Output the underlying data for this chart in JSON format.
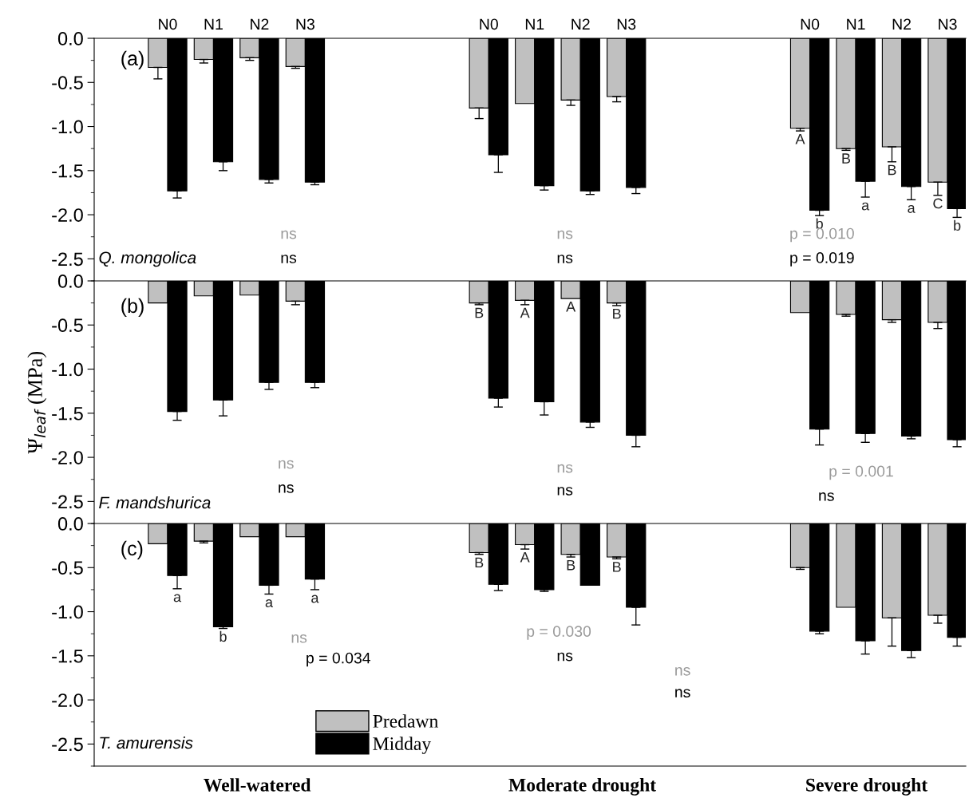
{
  "chart_data": [
    {
      "type": "bar",
      "categories": [
        "N0",
        "N1",
        "N2",
        "N3",
        null,
        null,
        null,
        "N0",
        "N1",
        "N2",
        "N3",
        null,
        null,
        null,
        "N0",
        "N1",
        "N2",
        "N3"
      ],
      "ylim": [
        -2.75,
        0
      ],
      "yticks": [
        {
          "value": 0,
          "label": "0.0"
        },
        {
          "value": -0.5,
          "label": "-0.5"
        },
        {
          "value": -1.0,
          "label": "-1.0"
        },
        {
          "value": -1.5,
          "label": "-1.5"
        },
        {
          "value": -2.0,
          "label": "-2.0"
        },
        {
          "value": -2.5,
          "label": "-2.5"
        }
      ],
      "series": [
        {
          "color": "#c0c0c0",
          "values": [
            -0.33,
            -0.24,
            -0.22,
            -0.32,
            null,
            null,
            null,
            -0.79,
            -0.74,
            -0.7,
            -0.66,
            null,
            null,
            null,
            -1.02,
            -1.25,
            -1.23,
            -1.63
          ],
          "errors": [
            [
              -0.46,
              -0.33
            ],
            [
              -0.28,
              -0.24
            ],
            [
              -0.25,
              -0.22
            ],
            [
              -0.34,
              -0.32
            ],
            null,
            null,
            null,
            [
              -0.91,
              -0.79
            ],
            null,
            [
              -0.76,
              -0.7
            ],
            [
              -0.72,
              -0.66
            ],
            null,
            null,
            null,
            [
              -1.05,
              -1.02
            ],
            [
              -1.27,
              -1.25
            ],
            [
              -1.4,
              -1.23
            ],
            [
              -1.78,
              -1.63
            ]
          ],
          "value_labels": [
            null,
            null,
            null,
            null,
            null,
            null,
            null,
            null,
            null,
            null,
            null,
            null,
            null,
            null,
            "A",
            "B",
            "B",
            "C"
          ]
        },
        {
          "color": "#000000",
          "values": [
            -1.73,
            -1.4,
            -1.6,
            -1.63,
            null,
            null,
            null,
            -1.32,
            -1.67,
            -1.73,
            -1.69,
            null,
            null,
            null,
            -1.95,
            -1.62,
            -1.68,
            -1.93
          ],
          "errors": [
            [
              -1.81,
              -1.73
            ],
            [
              -1.5,
              -1.4
            ],
            [
              -1.64,
              -1.6
            ],
            [
              -1.66,
              -1.63
            ],
            null,
            null,
            null,
            [
              -1.52,
              -1.32
            ],
            [
              -1.72,
              -1.67
            ],
            [
              -1.77,
              -1.73
            ],
            [
              -1.76,
              -1.69
            ],
            null,
            null,
            null,
            [
              -2.01,
              -1.95
            ],
            [
              -1.8,
              -1.62
            ],
            [
              -1.83,
              -1.68
            ],
            [
              -2.03,
              -1.93
            ]
          ],
          "value_labels": [
            null,
            null,
            null,
            null,
            null,
            null,
            null,
            null,
            null,
            null,
            null,
            null,
            null,
            null,
            "b",
            "a",
            "a",
            "b"
          ]
        }
      ],
      "annotations": [
        "(a)",
        "Q. mongolica",
        "ns",
        "ns",
        "ns",
        "ns",
        "p = 0.010",
        "p = 0.019"
      ]
    },
    {
      "type": "bar",
      "categories": [
        null,
        null,
        null,
        null,
        null,
        null,
        null,
        null,
        null,
        null,
        null,
        null,
        null,
        null,
        null,
        null,
        null,
        null
      ],
      "ylabel": "Ψ$_{leaf}$ (MPa)",
      "tick_labels": "y",
      "ylim": [
        -2.75,
        0
      ],
      "yticks": [
        {
          "value": 0,
          "label": "0.0"
        },
        {
          "value": -0.5,
          "label": "-0.5"
        },
        {
          "value": -1.0,
          "label": "-1.0"
        },
        {
          "value": -1.5,
          "label": "-1.5"
        },
        {
          "value": -2.0,
          "label": "-2.0"
        },
        {
          "value": -2.5,
          "label": "-2.5"
        }
      ],
      "series": [
        {
          "color": "#c0c0c0",
          "values": [
            -0.25,
            -0.17,
            -0.16,
            -0.23,
            null,
            null,
            null,
            -0.25,
            -0.22,
            -0.2,
            -0.25,
            null,
            null,
            null,
            -0.36,
            -0.38,
            -0.44,
            -0.47
          ],
          "errors": [
            null,
            null,
            null,
            [
              -0.27,
              -0.23
            ],
            null,
            null,
            null,
            [
              -0.27,
              -0.25
            ],
            [
              -0.27,
              -0.22
            ],
            null,
            [
              -0.28,
              -0.25
            ],
            null,
            null,
            null,
            null,
            [
              -0.4,
              -0.38
            ],
            [
              -0.47,
              -0.44
            ],
            [
              -0.54,
              -0.47
            ]
          ],
          "value_labels": [
            null,
            null,
            null,
            null,
            null,
            null,
            null,
            "B",
            "A",
            "A",
            "B",
            null,
            null,
            null,
            null,
            null,
            null,
            null
          ]
        },
        {
          "color": "#000000",
          "values": [
            -1.48,
            -1.35,
            -1.15,
            -1.15,
            null,
            null,
            null,
            -1.33,
            -1.37,
            -1.6,
            -1.75,
            null,
            null,
            null,
            -1.68,
            -1.73,
            -1.76,
            -1.8
          ],
          "errors": [
            [
              -1.58,
              -1.48
            ],
            [
              -1.53,
              -1.35
            ],
            [
              -1.23,
              -1.15
            ],
            [
              -1.21,
              -1.15
            ],
            null,
            null,
            null,
            [
              -1.43,
              -1.33
            ],
            [
              -1.52,
              -1.37
            ],
            [
              -1.66,
              -1.6
            ],
            [
              -1.88,
              -1.75
            ],
            null,
            null,
            null,
            [
              -1.86,
              -1.68
            ],
            [
              -1.83,
              -1.73
            ],
            [
              -1.79,
              -1.76
            ],
            [
              -1.88,
              -1.8
            ]
          ]
        }
      ],
      "annotations": [
        "(b)",
        "F. mandshurica",
        "ns",
        "ns",
        "ns",
        "ns",
        "p = 0.001",
        "ns"
      ]
    },
    {
      "type": "bar",
      "categories": [
        null,
        null,
        null,
        null,
        null,
        null,
        null,
        null,
        null,
        null,
        null,
        null,
        null,
        null,
        null,
        null,
        null,
        null
      ],
      "tick_labels": "y",
      "legend": "bottom left",
      "ylim": [
        -2.75,
        0
      ],
      "yticks": [
        {
          "value": 0,
          "label": "0.0"
        },
        {
          "value": -0.5,
          "label": "-0.5"
        },
        {
          "value": -1.0,
          "label": "-1.0"
        },
        {
          "value": -1.5,
          "label": "-1.5"
        },
        {
          "value": -2.0,
          "label": "-2.0"
        },
        {
          "value": -2.5,
          "label": "-2.5"
        }
      ],
      "series": [
        {
          "name": "Predawn",
          "color": "#c0c0c0",
          "values": [
            -0.23,
            -0.2,
            -0.15,
            -0.15,
            null,
            null,
            null,
            -0.33,
            -0.24,
            -0.35,
            -0.38,
            null,
            null,
            null,
            -0.5,
            -0.95,
            -1.07,
            -1.04
          ],
          "errors": [
            null,
            [
              -0.22,
              -0.2
            ],
            null,
            null,
            null,
            null,
            null,
            [
              -0.35,
              -0.33
            ],
            [
              -0.29,
              -0.24
            ],
            [
              -0.38,
              -0.35
            ],
            [
              -0.4,
              -0.38
            ],
            null,
            null,
            null,
            [
              -0.52,
              -0.5
            ],
            null,
            [
              -1.39,
              -1.07
            ],
            [
              -1.13,
              -1.04
            ]
          ],
          "value_labels": [
            null,
            null,
            null,
            null,
            null,
            null,
            null,
            "B",
            "A",
            "B",
            "B",
            null,
            null,
            null,
            null,
            null,
            null,
            null
          ]
        },
        {
          "name": "Midday",
          "color": "#000000",
          "values": [
            -0.59,
            -1.17,
            -0.7,
            -0.63,
            null,
            null,
            null,
            -0.69,
            -0.75,
            -0.7,
            -0.95,
            null,
            null,
            null,
            -1.22,
            -1.33,
            -1.44,
            -1.29
          ],
          "errors": [
            [
              -0.74,
              -0.59
            ],
            [
              -1.19,
              -1.17
            ],
            [
              -0.8,
              -0.7
            ],
            [
              -0.75,
              -0.63
            ],
            null,
            null,
            null,
            [
              -0.76,
              -0.69
            ],
            [
              -0.77,
              -0.75
            ],
            null,
            [
              -1.15,
              -0.95
            ],
            null,
            null,
            null,
            [
              -1.25,
              -1.22
            ],
            [
              -1.48,
              -1.33
            ],
            [
              -1.52,
              -1.44
            ],
            [
              -1.39,
              -1.29
            ]
          ],
          "value_labels": [
            "a",
            "b",
            "a",
            "a",
            null,
            null,
            null,
            null,
            null,
            null,
            null,
            null,
            null,
            null,
            null,
            null,
            null,
            null
          ]
        }
      ],
      "annotations": [
        "(c)",
        "T. amurensis",
        "ns",
        "p = 0.034",
        "p = 0.030",
        "ns",
        "ns",
        "ns",
        "Well-watered",
        "Moderate drought",
        "Severe drought"
      ]
    }
  ]
}
